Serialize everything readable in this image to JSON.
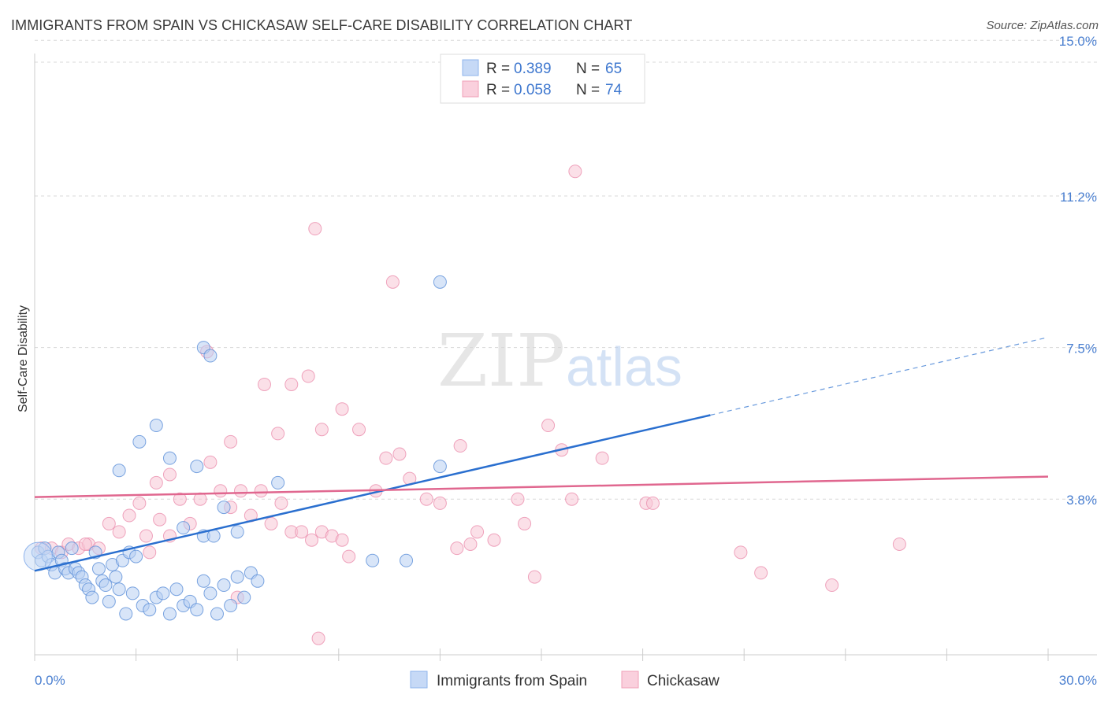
{
  "header": {
    "title": "IMMIGRANTS FROM SPAIN VS CHICKASAW SELF-CARE DISABILITY CORRELATION CHART",
    "source": "Source: ZipAtlas.com"
  },
  "watermark": {
    "zip": "ZIP",
    "atlas": "atlas"
  },
  "legend": {
    "rows": [
      {
        "r_label": "R =",
        "r_value": "0.389",
        "n_label": "N =",
        "n_value": "65",
        "color": "#8fb4ec",
        "fill": "#c6d9f6"
      },
      {
        "r_label": "R =",
        "r_value": "0.058",
        "n_label": "N =",
        "n_value": "74",
        "color": "#f0a0b8",
        "fill": "#fad0dd"
      }
    ]
  },
  "chart_data": {
    "type": "scatter",
    "title": "IMMIGRANTS FROM SPAIN VS CHICKASAW SELF-CARE DISABILITY CORRELATION CHART",
    "xlabel": "",
    "ylabel": "Self-Care Disability",
    "xlim": [
      0,
      30
    ],
    "ylim": [
      0,
      15.6
    ],
    "x_tick_labels": [
      "0.0%",
      "30.0%"
    ],
    "y_ticks": [
      3.8,
      7.5,
      11.2,
      15.0
    ],
    "y_tick_labels": [
      "3.8%",
      "7.5%",
      "11.2%",
      "15.0%"
    ],
    "grid": true,
    "legend_position": "top-center",
    "series": [
      {
        "name": "Immigrants from Spain",
        "color": "#5b8fd8",
        "fill": "#b8d0f2",
        "trend": {
          "x0": 0,
          "y0": 2.05,
          "x1": 20,
          "y1": 5.85,
          "dash_to_x": 30,
          "dash_to_y": 7.75,
          "color": "#2a6fcf"
        },
        "points": [
          [
            0.1,
            2.5
          ],
          [
            0.2,
            2.3
          ],
          [
            0.3,
            2.6
          ],
          [
            0.4,
            2.4
          ],
          [
            0.5,
            2.2
          ],
          [
            0.6,
            2.0
          ],
          [
            0.7,
            2.5
          ],
          [
            0.8,
            2.3
          ],
          [
            0.9,
            2.1
          ],
          [
            1.0,
            2.0
          ],
          [
            1.1,
            2.6
          ],
          [
            1.2,
            2.1
          ],
          [
            1.3,
            2.0
          ],
          [
            1.4,
            1.9
          ],
          [
            1.5,
            1.7
          ],
          [
            1.6,
            1.6
          ],
          [
            1.7,
            1.4
          ],
          [
            1.8,
            2.5
          ],
          [
            1.9,
            2.1
          ],
          [
            2.0,
            1.8
          ],
          [
            2.1,
            1.7
          ],
          [
            2.2,
            1.3
          ],
          [
            2.3,
            2.2
          ],
          [
            2.4,
            1.9
          ],
          [
            2.5,
            1.6
          ],
          [
            2.6,
            2.3
          ],
          [
            2.7,
            1.0
          ],
          [
            2.8,
            2.5
          ],
          [
            2.9,
            1.5
          ],
          [
            3.0,
            2.4
          ],
          [
            3.2,
            1.2
          ],
          [
            3.4,
            1.1
          ],
          [
            3.6,
            1.4
          ],
          [
            3.8,
            1.5
          ],
          [
            4.0,
            1.0
          ],
          [
            4.2,
            1.6
          ],
          [
            4.4,
            1.2
          ],
          [
            4.6,
            1.3
          ],
          [
            4.8,
            1.1
          ],
          [
            5.0,
            1.8
          ],
          [
            5.2,
            1.5
          ],
          [
            5.4,
            1.0
          ],
          [
            5.6,
            1.7
          ],
          [
            5.8,
            1.2
          ],
          [
            6.0,
            1.9
          ],
          [
            6.2,
            1.4
          ],
          [
            6.4,
            2.0
          ],
          [
            6.6,
            1.8
          ],
          [
            2.5,
            4.5
          ],
          [
            3.1,
            5.2
          ],
          [
            3.6,
            5.6
          ],
          [
            4.0,
            4.8
          ],
          [
            4.4,
            3.1
          ],
          [
            4.8,
            4.6
          ],
          [
            5.0,
            2.9
          ],
          [
            5.3,
            2.9
          ],
          [
            5.6,
            3.6
          ],
          [
            5.0,
            7.5
          ],
          [
            5.2,
            7.3
          ],
          [
            6.0,
            3.0
          ],
          [
            7.2,
            4.2
          ],
          [
            10.0,
            2.3
          ],
          [
            11.0,
            2.3
          ],
          [
            12.0,
            4.6
          ],
          [
            12.0,
            9.1
          ]
        ]
      },
      {
        "name": "Chickasaw",
        "color": "#eb8fae",
        "fill": "#f8c6d6",
        "trend": {
          "x0": 0,
          "y0": 3.85,
          "x1": 30,
          "y1": 4.35,
          "color": "#e0678f"
        },
        "points": [
          [
            0.2,
            2.6
          ],
          [
            0.5,
            2.6
          ],
          [
            0.8,
            2.5
          ],
          [
            1.0,
            2.7
          ],
          [
            1.3,
            2.6
          ],
          [
            1.6,
            2.7
          ],
          [
            1.9,
            2.6
          ],
          [
            2.2,
            3.2
          ],
          [
            2.5,
            3.0
          ],
          [
            2.8,
            3.4
          ],
          [
            3.1,
            3.7
          ],
          [
            3.4,
            2.5
          ],
          [
            3.7,
            3.3
          ],
          [
            4.0,
            2.9
          ],
          [
            4.3,
            3.8
          ],
          [
            4.6,
            3.2
          ],
          [
            4.9,
            3.8
          ],
          [
            5.2,
            4.7
          ],
          [
            5.5,
            4.0
          ],
          [
            5.8,
            3.6
          ],
          [
            6.1,
            4.0
          ],
          [
            6.4,
            3.4
          ],
          [
            6.7,
            4.0
          ],
          [
            7.0,
            3.2
          ],
          [
            7.3,
            3.7
          ],
          [
            7.6,
            3.0
          ],
          [
            7.9,
            3.0
          ],
          [
            8.2,
            2.8
          ],
          [
            8.5,
            3.0
          ],
          [
            8.8,
            2.9
          ],
          [
            9.1,
            2.8
          ],
          [
            3.6,
            4.2
          ],
          [
            4.0,
            4.4
          ],
          [
            5.1,
            7.4
          ],
          [
            5.8,
            5.2
          ],
          [
            6.8,
            6.6
          ],
          [
            7.2,
            5.4
          ],
          [
            7.6,
            6.6
          ],
          [
            8.1,
            6.8
          ],
          [
            8.5,
            5.5
          ],
          [
            9.1,
            6.0
          ],
          [
            9.6,
            5.5
          ],
          [
            10.1,
            4.0
          ],
          [
            10.4,
            4.8
          ],
          [
            10.8,
            4.9
          ],
          [
            11.1,
            4.3
          ],
          [
            11.6,
            3.8
          ],
          [
            12.0,
            3.7
          ],
          [
            12.6,
            5.1
          ],
          [
            12.5,
            2.6
          ],
          [
            12.9,
            2.7
          ],
          [
            13.1,
            3.0
          ],
          [
            13.6,
            2.8
          ],
          [
            14.3,
            3.8
          ],
          [
            14.5,
            3.2
          ],
          [
            14.8,
            1.9
          ],
          [
            15.2,
            5.6
          ],
          [
            15.6,
            5.0
          ],
          [
            15.9,
            3.8
          ],
          [
            16.8,
            4.8
          ],
          [
            18.1,
            3.7
          ],
          [
            18.3,
            3.7
          ],
          [
            20.9,
            2.5
          ],
          [
            21.5,
            2.0
          ],
          [
            23.6,
            1.7
          ],
          [
            25.6,
            2.7
          ],
          [
            8.3,
            10.4
          ],
          [
            10.6,
            9.1
          ],
          [
            16.0,
            11.8
          ],
          [
            6.0,
            1.4
          ],
          [
            8.4,
            0.4
          ],
          [
            3.3,
            2.9
          ],
          [
            1.5,
            2.7
          ],
          [
            9.3,
            2.4
          ]
        ]
      }
    ]
  }
}
